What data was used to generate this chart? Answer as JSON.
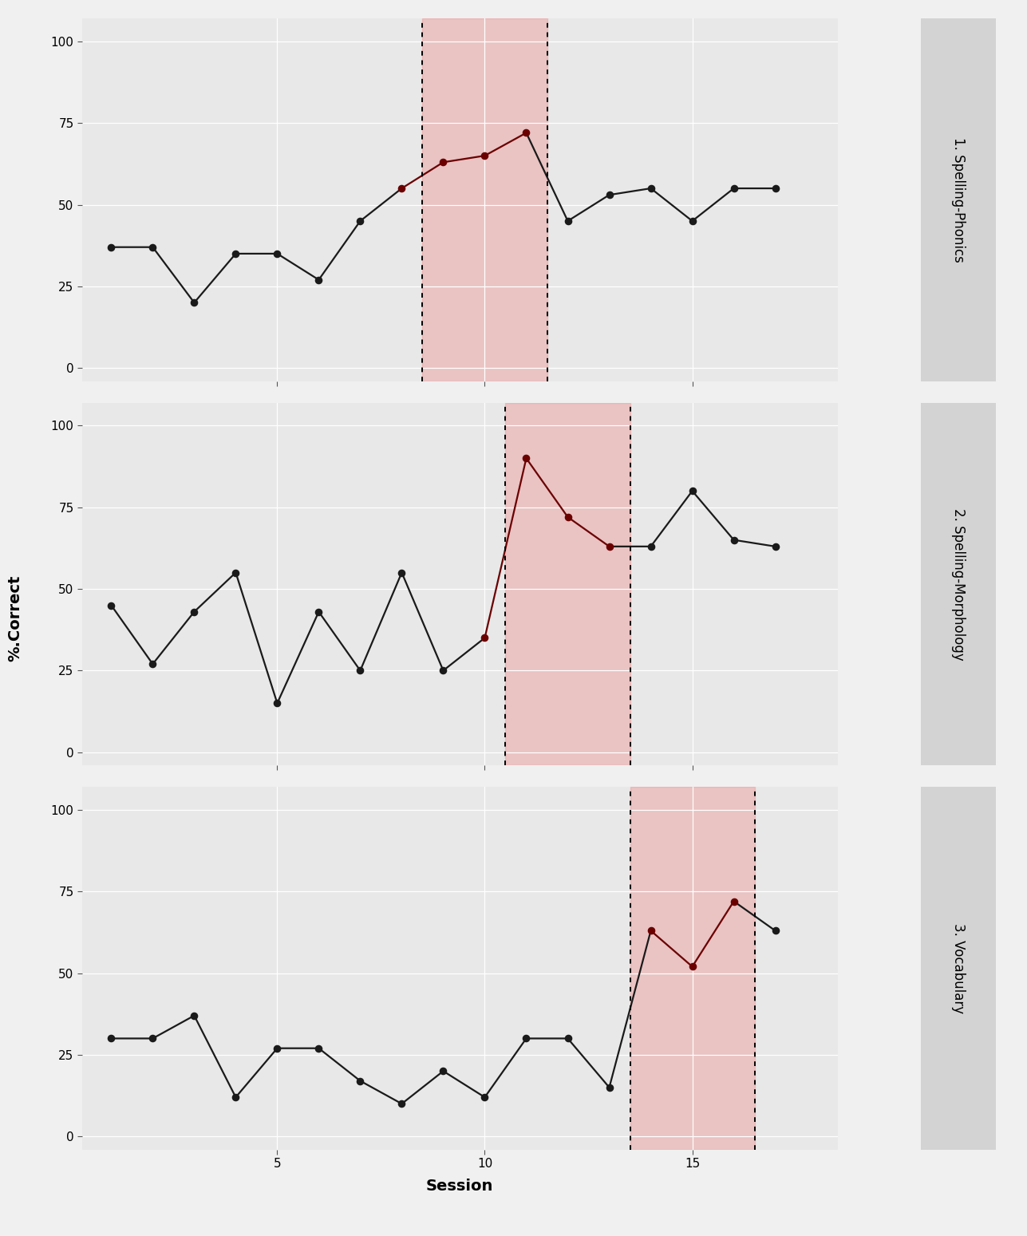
{
  "panel1": {
    "title": "1. Spelling-Phonics",
    "x": [
      1,
      2,
      3,
      4,
      5,
      6,
      7,
      8,
      9,
      10,
      11,
      12,
      13,
      14,
      15,
      16,
      17
    ],
    "y": [
      37,
      37,
      20,
      35,
      35,
      27,
      45,
      55,
      63,
      65,
      72,
      45,
      53,
      55,
      45,
      55,
      55
    ],
    "shade_x0": 8.5,
    "shade_x1": 11.5,
    "dark_start_idx": 7,
    "dark_end_idx": 10
  },
  "panel2": {
    "title": "2. Spelling-Morphology",
    "x": [
      1,
      2,
      3,
      4,
      5,
      6,
      7,
      8,
      9,
      10,
      11,
      12,
      13,
      14,
      15,
      16,
      17
    ],
    "y": [
      45,
      27,
      43,
      55,
      15,
      43,
      25,
      55,
      25,
      35,
      90,
      72,
      63,
      63,
      80,
      65,
      63
    ],
    "shade_x0": 10.5,
    "shade_x1": 13.5,
    "dark_start_idx": 9,
    "dark_end_idx": 12
  },
  "panel3": {
    "title": "3. Vocabulary",
    "x": [
      1,
      2,
      3,
      4,
      5,
      6,
      7,
      8,
      9,
      10,
      11,
      12,
      13,
      14,
      15,
      16,
      17
    ],
    "y": [
      30,
      30,
      37,
      12,
      27,
      27,
      17,
      10,
      20,
      12,
      30,
      30,
      15,
      63,
      52,
      72,
      63
    ],
    "shade_x0": 13.5,
    "shade_x1": 16.5,
    "dark_start_idx": 13,
    "dark_end_idx": 15
  },
  "shade_color": "#f08080",
  "shade_alpha": 0.35,
  "dark_red_color": "#6B0000",
  "black_color": "#1a1a1a",
  "bg_panel": "#e8e8e8",
  "bg_strip": "#d3d3d3",
  "grid_color": "#ffffff",
  "ylabel": "%.Correct",
  "xlabel": "Session",
  "ylim": [
    -4,
    107
  ],
  "yticks": [
    0,
    25,
    50,
    75,
    100
  ],
  "xticks": [
    5,
    10,
    15
  ],
  "xlim": [
    0.3,
    18.5
  ],
  "dot_size": 35,
  "line_width": 1.6,
  "vline_lw": 1.4,
  "axis_fontsize": 11,
  "label_fontsize": 14,
  "strip_fontsize": 12
}
